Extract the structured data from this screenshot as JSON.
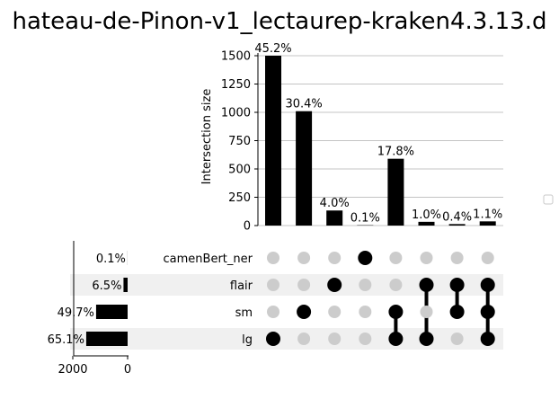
{
  "title": "hateau-de-Pinon-v1_lectaurep-kraken4.3.13.d",
  "chart_data": {
    "type": "bar",
    "subtype": "upset",
    "ylabel": "Intersection size",
    "ylim": [
      0,
      1500
    ],
    "yticks": [
      "0",
      "250",
      "500",
      "750",
      "1000",
      "1250",
      "1500"
    ],
    "grid": true,
    "sets": [
      "camenBert_ner",
      "flair",
      "sm",
      "lg"
    ],
    "set_percent_labels": [
      "0.1%",
      "6.5%",
      "49.7%",
      "65.1%"
    ],
    "set_sizes_approx": [
      3,
      150,
      1150,
      1510
    ],
    "set_size_ticks": [
      "2000",
      "0"
    ],
    "set_size_axis_max": 2000,
    "intersections": [
      {
        "members": [
          "lg"
        ],
        "value": 1500,
        "label": "45.2%"
      },
      {
        "members": [
          "sm"
        ],
        "value": 1010,
        "label": "30.4%"
      },
      {
        "members": [
          "flair"
        ],
        "value": 133,
        "label": "4.0%"
      },
      {
        "members": [
          "camenBert_ner"
        ],
        "value": 3,
        "label": "0.1%"
      },
      {
        "members": [
          "sm",
          "lg"
        ],
        "value": 590,
        "label": "17.8%"
      },
      {
        "members": [
          "flair",
          "lg"
        ],
        "value": 33,
        "label": "1.0%"
      },
      {
        "members": [
          "flair",
          "sm"
        ],
        "value": 13,
        "label": "0.4%"
      },
      {
        "members": [
          "flair",
          "sm",
          "lg"
        ],
        "value": 37,
        "label": "1.1%"
      }
    ],
    "legend": "empty box, right"
  },
  "colors": {
    "bar": "#000000",
    "dot_on": "#000000",
    "dot_off": "#cccccc",
    "shade": "#f0f0f0",
    "grid": "#b0b0b0"
  }
}
